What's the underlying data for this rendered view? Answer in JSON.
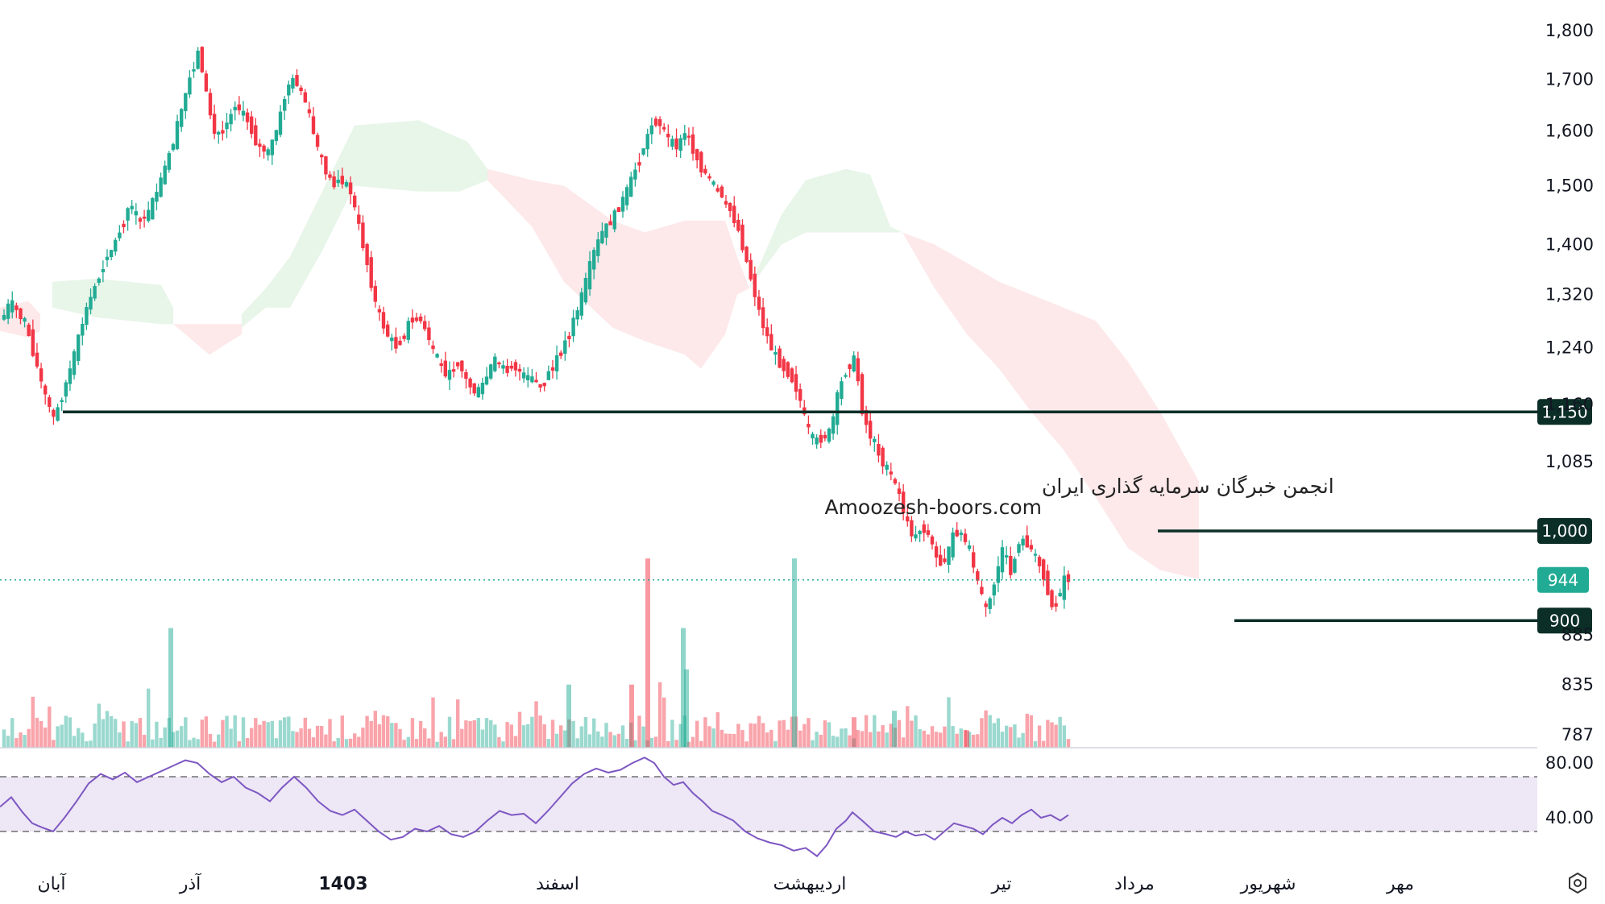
{
  "chart_data": {
    "type": "candlestick",
    "price_axis": {
      "scale": "log",
      "ticks": [
        "1,800",
        "1,700",
        "1,600",
        "1,500",
        "1,400",
        "1,320",
        "1,240",
        "1,160",
        "1,085",
        "944",
        "885",
        "835",
        "787"
      ],
      "tick_values": [
        1800,
        1700,
        1600,
        1500,
        1400,
        1320,
        1240,
        1160,
        1085,
        944,
        885,
        835,
        787
      ]
    },
    "time_axis": {
      "labels": [
        "آبان",
        "آذر",
        "1403",
        "اسفند",
        "اردیبهشت",
        "تیر",
        "مرداد",
        "شهریور",
        "مهر"
      ],
      "bold": [
        false,
        false,
        true,
        false,
        false,
        false,
        false,
        false,
        false
      ]
    },
    "levels": [
      {
        "label": "1,150",
        "value": 1150
      },
      {
        "label": "1,000",
        "value": 1000
      },
      {
        "label": "900",
        "value": 900
      }
    ],
    "last_price": {
      "label": "944",
      "value": 944
    },
    "rsi": {
      "ticks": [
        "80.00",
        "40.00"
      ],
      "upper": 70,
      "lower": 30
    },
    "watermark": {
      "line1": "انجمن خبرگان سرمایه گذاری ایران",
      "line2": "Amoozesh-boors.com"
    },
    "colors": {
      "up": "#22ab94",
      "down": "#f23645",
      "level": "#0b2e26",
      "cloud_green": "#e8f5e9",
      "cloud_red": "#fde8ea",
      "rsi_line": "#7e57c2",
      "rsi_band": "#ede7f6",
      "last": "#22ab94"
    },
    "anchors": [
      [
        0,
        1280
      ],
      [
        8,
        1283
      ],
      [
        18,
        1310
      ],
      [
        28,
        1290
      ],
      [
        38,
        1270
      ],
      [
        48,
        1225
      ],
      [
        60,
        1175
      ],
      [
        72,
        1140
      ],
      [
        80,
        1165
      ],
      [
        95,
        1220
      ],
      [
        110,
        1290
      ],
      [
        125,
        1340
      ],
      [
        135,
        1370
      ],
      [
        150,
        1410
      ],
      [
        165,
        1465
      ],
      [
        180,
        1440
      ],
      [
        190,
        1455
      ],
      [
        205,
        1510
      ],
      [
        220,
        1580
      ],
      [
        232,
        1650
      ],
      [
        240,
        1700
      ],
      [
        252,
        1760
      ],
      [
        262,
        1660
      ],
      [
        272,
        1590
      ],
      [
        285,
        1610
      ],
      [
        298,
        1650
      ],
      [
        312,
        1620
      ],
      [
        325,
        1570
      ],
      [
        338,
        1560
      ],
      [
        350,
        1610
      ],
      [
        362,
        1690
      ],
      [
        372,
        1700
      ],
      [
        385,
        1650
      ],
      [
        395,
        1590
      ],
      [
        405,
        1540
      ],
      [
        418,
        1500
      ],
      [
        430,
        1510
      ],
      [
        440,
        1490
      ],
      [
        452,
        1420
      ],
      [
        462,
        1360
      ],
      [
        472,
        1300
      ],
      [
        485,
        1260
      ],
      [
        498,
        1240
      ],
      [
        510,
        1270
      ],
      [
        520,
        1290
      ],
      [
        530,
        1275
      ],
      [
        540,
        1245
      ],
      [
        550,
        1215
      ],
      [
        562,
        1200
      ],
      [
        574,
        1220
      ],
      [
        585,
        1190
      ],
      [
        596,
        1175
      ],
      [
        606,
        1190
      ],
      [
        618,
        1225
      ],
      [
        630,
        1205
      ],
      [
        642,
        1215
      ],
      [
        654,
        1200
      ],
      [
        666,
        1195
      ],
      [
        676,
        1185
      ],
      [
        688,
        1210
      ],
      [
        700,
        1230
      ],
      [
        710,
        1260
      ],
      [
        720,
        1290
      ],
      [
        730,
        1330
      ],
      [
        740,
        1380
      ],
      [
        752,
        1420
      ],
      [
        764,
        1440
      ],
      [
        776,
        1470
      ],
      [
        786,
        1500
      ],
      [
        796,
        1540
      ],
      [
        806,
        1580
      ],
      [
        816,
        1620
      ],
      [
        826,
        1610
      ],
      [
        836,
        1580
      ],
      [
        846,
        1570
      ],
      [
        856,
        1600
      ],
      [
        866,
        1560
      ],
      [
        876,
        1530
      ],
      [
        886,
        1510
      ],
      [
        898,
        1490
      ],
      [
        910,
        1460
      ],
      [
        920,
        1430
      ],
      [
        930,
        1380
      ],
      [
        940,
        1330
      ],
      [
        950,
        1280
      ],
      [
        962,
        1240
      ],
      [
        974,
        1215
      ],
      [
        986,
        1200
      ],
      [
        996,
        1175
      ],
      [
        1006,
        1130
      ],
      [
        1016,
        1110
      ],
      [
        1026,
        1115
      ],
      [
        1036,
        1125
      ],
      [
        1046,
        1180
      ],
      [
        1056,
        1210
      ],
      [
        1066,
        1225
      ],
      [
        1076,
        1145
      ],
      [
        1088,
        1110
      ],
      [
        1100,
        1085
      ],
      [
        1112,
        1065
      ],
      [
        1122,
        1040
      ],
      [
        1130,
        1010
      ],
      [
        1140,
        990
      ],
      [
        1150,
        1005
      ],
      [
        1160,
        990
      ],
      [
        1170,
        960
      ],
      [
        1180,
        970
      ],
      [
        1190,
        1000
      ],
      [
        1200,
        995
      ],
      [
        1210,
        970
      ],
      [
        1220,
        935
      ],
      [
        1230,
        910
      ],
      [
        1240,
        945
      ],
      [
        1250,
        980
      ],
      [
        1260,
        950
      ],
      [
        1270,
        990
      ],
      [
        1280,
        985
      ],
      [
        1290,
        970
      ],
      [
        1300,
        950
      ],
      [
        1310,
        915
      ],
      [
        1318,
        920
      ],
      [
        1326,
        945
      ]
    ],
    "rsi_anchors": [
      [
        0,
        48
      ],
      [
        14,
        55
      ],
      [
        28,
        44
      ],
      [
        40,
        36
      ],
      [
        52,
        33
      ],
      [
        66,
        30
      ],
      [
        80,
        40
      ],
      [
        95,
        52
      ],
      [
        110,
        65
      ],
      [
        125,
        72
      ],
      [
        140,
        68
      ],
      [
        155,
        73
      ],
      [
        170,
        66
      ],
      [
        185,
        70
      ],
      [
        200,
        74
      ],
      [
        215,
        78
      ],
      [
        230,
        82
      ],
      [
        245,
        80
      ],
      [
        260,
        72
      ],
      [
        275,
        66
      ],
      [
        290,
        70
      ],
      [
        305,
        62
      ],
      [
        320,
        58
      ],
      [
        335,
        52
      ],
      [
        350,
        62
      ],
      [
        365,
        70
      ],
      [
        380,
        62
      ],
      [
        395,
        52
      ],
      [
        410,
        45
      ],
      [
        425,
        42
      ],
      [
        440,
        46
      ],
      [
        455,
        38
      ],
      [
        470,
        30
      ],
      [
        485,
        24
      ],
      [
        500,
        26
      ],
      [
        515,
        32
      ],
      [
        530,
        30
      ],
      [
        545,
        34
      ],
      [
        560,
        28
      ],
      [
        575,
        26
      ],
      [
        590,
        30
      ],
      [
        605,
        38
      ],
      [
        620,
        45
      ],
      [
        635,
        42
      ],
      [
        650,
        43
      ],
      [
        665,
        36
      ],
      [
        680,
        45
      ],
      [
        695,
        55
      ],
      [
        710,
        65
      ],
      [
        725,
        72
      ],
      [
        740,
        76
      ],
      [
        755,
        73
      ],
      [
        770,
        75
      ],
      [
        785,
        80
      ],
      [
        800,
        84
      ],
      [
        812,
        80
      ],
      [
        824,
        70
      ],
      [
        836,
        64
      ],
      [
        848,
        66
      ],
      [
        860,
        58
      ],
      [
        872,
        52
      ],
      [
        884,
        45
      ],
      [
        896,
        42
      ],
      [
        910,
        38
      ],
      [
        925,
        30
      ],
      [
        940,
        25
      ],
      [
        955,
        22
      ],
      [
        970,
        20
      ],
      [
        985,
        16
      ],
      [
        1000,
        18
      ],
      [
        1014,
        12
      ],
      [
        1026,
        20
      ],
      [
        1038,
        32
      ],
      [
        1050,
        38
      ],
      [
        1058,
        44
      ],
      [
        1070,
        38
      ],
      [
        1085,
        30
      ],
      [
        1100,
        28
      ],
      [
        1112,
        26
      ],
      [
        1124,
        30
      ],
      [
        1136,
        27
      ],
      [
        1148,
        28
      ],
      [
        1160,
        24
      ],
      [
        1172,
        30
      ],
      [
        1184,
        36
      ],
      [
        1196,
        34
      ],
      [
        1208,
        32
      ],
      [
        1220,
        28
      ],
      [
        1232,
        35
      ],
      [
        1244,
        40
      ],
      [
        1256,
        36
      ],
      [
        1268,
        42
      ],
      [
        1280,
        46
      ],
      [
        1292,
        40
      ],
      [
        1304,
        42
      ],
      [
        1316,
        38
      ],
      [
        1326,
        42
      ]
    ],
    "big_volume_bars": [
      [
        212,
        0.55,
        "u"
      ],
      [
        804,
        0.87,
        "d"
      ],
      [
        848,
        0.55,
        "u"
      ],
      [
        986,
        0.87,
        "u"
      ],
      [
        706,
        0.29,
        "u"
      ],
      [
        784,
        0.29,
        "d"
      ],
      [
        852,
        0.36,
        "u"
      ],
      [
        1110,
        0.17,
        "u"
      ],
      [
        1060,
        0.14,
        "d"
      ],
      [
        1200,
        0.08,
        "d"
      ]
    ],
    "cloud_regions": [
      {
        "color": "red",
        "top": [
          [
            0,
            1300
          ],
          [
            35,
            1310
          ],
          [
            50,
            1290
          ]
        ],
        "bottom": [
          [
            0,
            1265
          ],
          [
            35,
            1255
          ],
          [
            50,
            1265
          ]
        ]
      },
      {
        "color": "green",
        "top": [
          [
            65,
            1340
          ],
          [
            120,
            1345
          ],
          [
            200,
            1335
          ],
          [
            215,
            1300
          ]
        ],
        "bottom": [
          [
            65,
            1300
          ],
          [
            120,
            1285
          ],
          [
            200,
            1275
          ],
          [
            215,
            1275
          ]
        ]
      },
      {
        "color": "red",
        "top": [
          [
            215,
            1275
          ],
          [
            260,
            1275
          ],
          [
            300,
            1275
          ]
        ],
        "bottom": [
          [
            215,
            1275
          ],
          [
            260,
            1230
          ],
          [
            300,
            1260
          ]
        ]
      },
      {
        "color": "green",
        "top": [
          [
            300,
            1290
          ],
          [
            330,
            1330
          ],
          [
            360,
            1380
          ],
          [
            400,
            1490
          ],
          [
            440,
            1610
          ],
          [
            520,
            1620
          ],
          [
            580,
            1580
          ],
          [
            605,
            1530
          ]
        ],
        "bottom": [
          [
            300,
            1270
          ],
          [
            330,
            1300
          ],
          [
            360,
            1300
          ],
          [
            400,
            1390
          ],
          [
            440,
            1500
          ],
          [
            520,
            1490
          ],
          [
            570,
            1490
          ],
          [
            605,
            1510
          ]
        ]
      },
      {
        "color": "red",
        "top": [
          [
            605,
            1530
          ],
          [
            660,
            1510
          ],
          [
            700,
            1500
          ],
          [
            760,
            1440
          ],
          [
            800,
            1420
          ],
          [
            850,
            1440
          ],
          [
            870,
            1440
          ]
        ],
        "bottom": [
          [
            605,
            1510
          ],
          [
            660,
            1430
          ],
          [
            700,
            1340
          ],
          [
            760,
            1270
          ],
          [
            800,
            1250
          ],
          [
            850,
            1230
          ],
          [
            870,
            1210
          ]
        ]
      },
      {
        "color": "red",
        "top": [
          [
            870,
            1440
          ],
          [
            900,
            1440
          ],
          [
            915,
            1380
          ],
          [
            930,
            1330
          ]
        ],
        "bottom": [
          [
            870,
            1210
          ],
          [
            900,
            1260
          ],
          [
            915,
            1320
          ],
          [
            930,
            1330
          ]
        ]
      },
      {
        "color": "green",
        "top": [
          [
            930,
            1330
          ],
          [
            970,
            1450
          ],
          [
            1000,
            1510
          ],
          [
            1050,
            1530
          ],
          [
            1080,
            1520
          ],
          [
            1105,
            1430
          ],
          [
            1120,
            1420
          ]
        ],
        "bottom": [
          [
            930,
            1330
          ],
          [
            970,
            1400
          ],
          [
            1000,
            1420
          ],
          [
            1050,
            1420
          ],
          [
            1080,
            1420
          ],
          [
            1105,
            1420
          ],
          [
            1120,
            1420
          ]
        ]
      },
      {
        "color": "red",
        "top": [
          [
            1120,
            1420
          ],
          [
            1160,
            1400
          ],
          [
            1200,
            1370
          ],
          [
            1240,
            1340
          ],
          [
            1300,
            1310
          ],
          [
            1360,
            1280
          ],
          [
            1400,
            1220
          ],
          [
            1440,
            1150
          ],
          [
            1488,
            1060
          ]
        ],
        "bottom": [
          [
            1120,
            1420
          ],
          [
            1160,
            1330
          ],
          [
            1200,
            1260
          ],
          [
            1240,
            1210
          ],
          [
            1280,
            1150
          ],
          [
            1320,
            1100
          ],
          [
            1360,
            1040
          ],
          [
            1400,
            980
          ],
          [
            1440,
            955
          ],
          [
            1488,
            945
          ]
        ]
      }
    ]
  }
}
